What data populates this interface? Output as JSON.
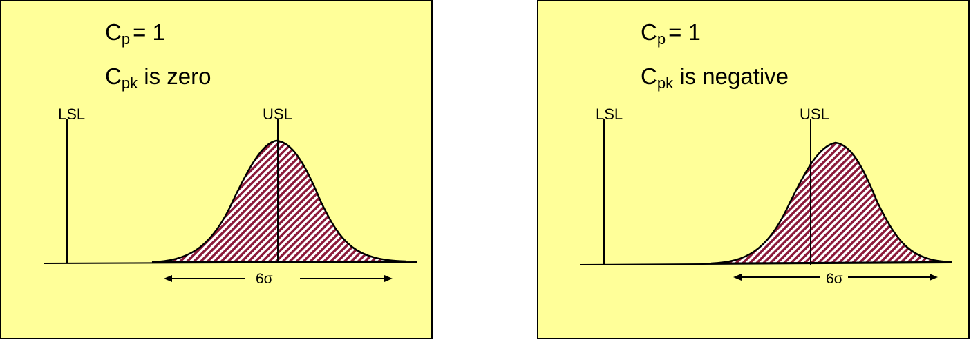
{
  "panels": [
    {
      "id": "left",
      "cp_symbol": "C",
      "cp_sub": "p",
      "cp_eq": "=  1",
      "cpk_symbol": "C",
      "cpk_sub": "pk",
      "cpk_text": "is zero",
      "lsl_label": "LSL",
      "usl_label": "USL",
      "spread_label": "6σ"
    },
    {
      "id": "right",
      "cp_symbol": "C",
      "cp_sub": "p",
      "cp_eq": "=  1",
      "cpk_symbol": "C",
      "cpk_sub": "pk",
      "cpk_text": "is negative",
      "lsl_label": "LSL",
      "usl_label": "USL",
      "spread_label": "6σ"
    }
  ],
  "colors": {
    "background": "#ffff99",
    "hatch": "#8b1a3a",
    "line": "#000000"
  }
}
